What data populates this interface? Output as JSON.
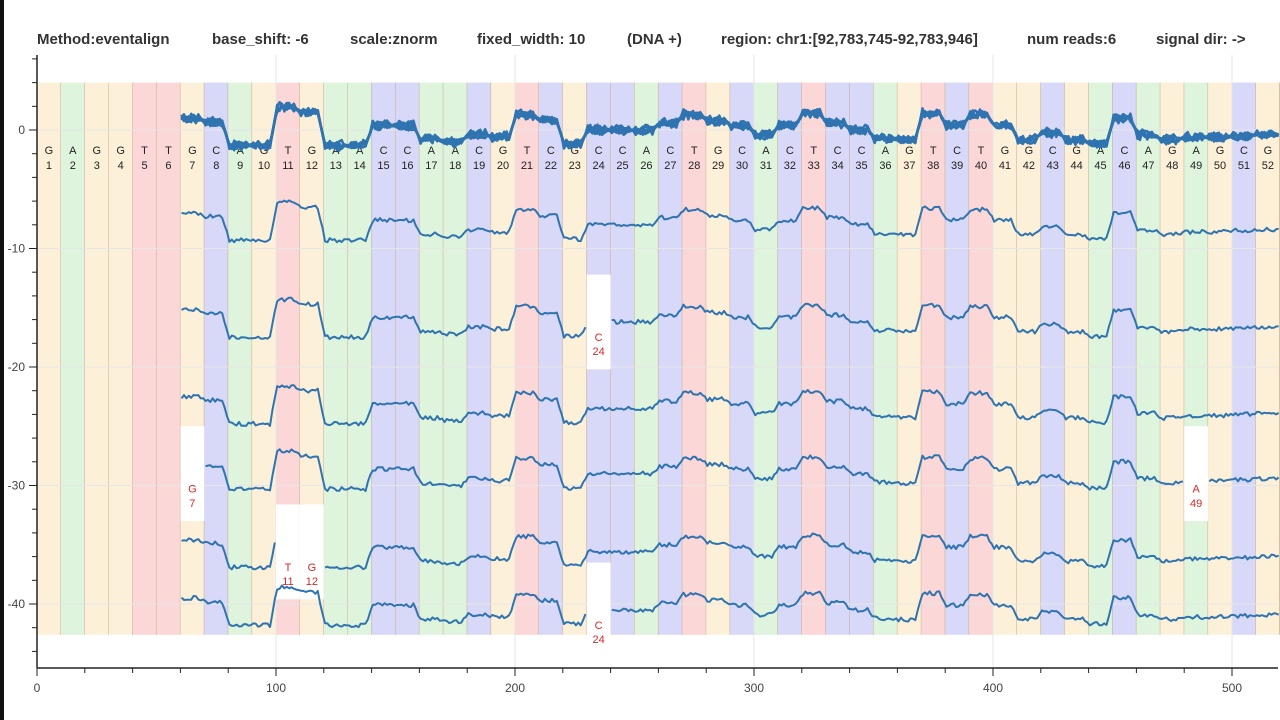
{
  "header": {
    "method": "Method:eventalign",
    "base_shift": "base_shift: -6",
    "scale": "scale:znorm",
    "fixed_width": "fixed_width: 10",
    "strand": "(DNA +)",
    "region": "region: chr1:[92,783,745-92,783,946]",
    "num_reads": "num reads:6",
    "signal_dir": "signal dir: ->"
  },
  "chart_data": {
    "type": "line",
    "title": "",
    "xlabel": "",
    "ylabel": "",
    "xlim": [
      0,
      519
    ],
    "ylim": [
      -45.4,
      6.3
    ],
    "x_ticks": [
      0,
      100,
      200,
      300,
      400,
      500
    ],
    "y_ticks": [
      0,
      -10,
      -20,
      -30,
      -40
    ],
    "grid": true,
    "base_width": 10,
    "base_colors": {
      "A": "#dff4dc",
      "C": "#d8d8f8",
      "G": "#fdf0d8",
      "T": "#fcd7d7"
    },
    "band_range": [
      4,
      -42.6
    ],
    "line_color": "#2f74b0",
    "deletion_label_color": "#d62728",
    "bases": [
      "G",
      "A",
      "G",
      "G",
      "T",
      "T",
      "G",
      "C",
      "A",
      "G",
      "T",
      "G",
      "A",
      "A",
      "C",
      "C",
      "A",
      "A",
      "C",
      "G",
      "T",
      "C",
      "G",
      "C",
      "C",
      "A",
      "C",
      "T",
      "G",
      "C",
      "A",
      "C",
      "T",
      "C",
      "C",
      "A",
      "G",
      "T",
      "C",
      "T",
      "G",
      "G",
      "C",
      "G",
      "A",
      "C",
      "A",
      "G",
      "A",
      "G",
      "C",
      "G"
    ],
    "signal_start_base": 7,
    "base_levels": [
      1.0,
      0.7,
      -1.3,
      -1.3,
      1.9,
      1.5,
      -1.3,
      -1.3,
      0.4,
      0.4,
      -0.8,
      -1.0,
      -0.4,
      -0.6,
      1.3,
      0.8,
      -1.2,
      0.0,
      0.0,
      0.0,
      0.6,
      1.3,
      0.8,
      0.4,
      -0.4,
      0.4,
      1.4,
      0.6,
      0.0,
      -0.7,
      -0.8,
      1.4,
      0.4,
      1.3,
      0.4,
      -0.8,
      -0.2,
      -0.8,
      -1.2,
      1.0,
      -0.4,
      -0.8,
      -0.6,
      -0.6,
      -0.5,
      -0.4
    ],
    "read_offsets": [
      -8,
      -16.2,
      -23.5,
      -29,
      -35.6,
      -40.5
    ],
    "deletions": [
      {
        "read": 1,
        "base": "C",
        "pos": 24
      },
      {
        "read": 3,
        "base": "G",
        "pos": 7
      },
      {
        "read": 3,
        "base": "A",
        "pos": 49
      },
      {
        "read": 4,
        "base": "T",
        "pos": 11
      },
      {
        "read": 4,
        "base": "G",
        "pos": 12
      },
      {
        "read": 5,
        "base": "C",
        "pos": 24
      }
    ]
  }
}
